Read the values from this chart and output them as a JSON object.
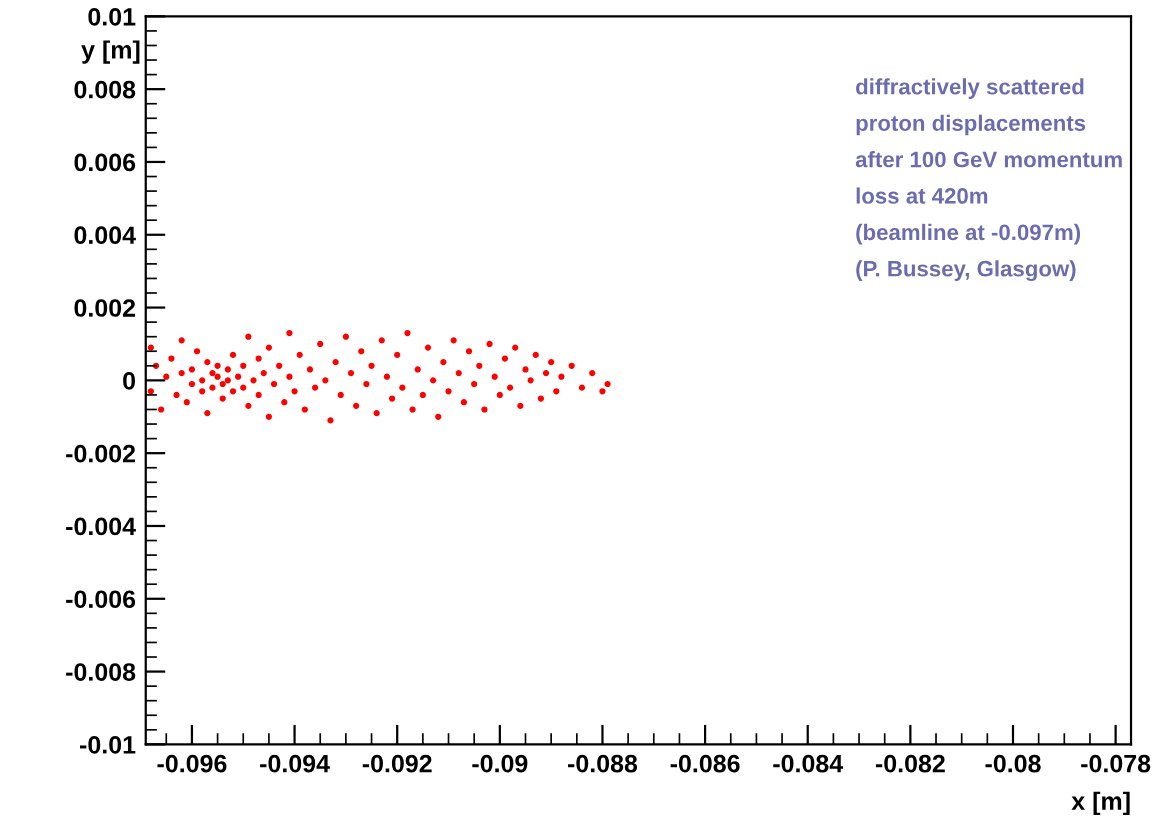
{
  "chart_data": {
    "type": "scatter",
    "xlabel": "x [m]",
    "ylabel": "y [m]",
    "xlim": [
      -0.0969,
      -0.0777
    ],
    "ylim": [
      -0.01,
      0.01
    ],
    "xticks": [
      -0.096,
      -0.094,
      -0.092,
      -0.09,
      -0.088,
      -0.086,
      -0.084,
      -0.082,
      -0.08,
      -0.078
    ],
    "yticks": [
      -0.01,
      -0.008,
      -0.006,
      -0.004,
      -0.002,
      0,
      0.002,
      0.004,
      0.006,
      0.008,
      0.01
    ],
    "grid": false,
    "marker": "circle",
    "annotations": [
      "diffractively scattered",
      "proton displacements",
      "after 100 GeV momentum",
      "loss at 420m",
      "(beamline at -0.097m)",
      "(P. Bussey, Glasgow)"
    ],
    "series": [
      {
        "color": "#ff0000",
        "x": [
          -0.0968,
          -0.0968,
          -0.0967,
          -0.0966,
          -0.0965,
          -0.0964,
          -0.0963,
          -0.0962,
          -0.0962,
          -0.0961,
          -0.096,
          -0.096,
          -0.0959,
          -0.0958,
          -0.0958,
          -0.0957,
          -0.0957,
          -0.0956,
          -0.0956,
          -0.0955,
          -0.0955,
          -0.0954,
          -0.0954,
          -0.0953,
          -0.0953,
          -0.0952,
          -0.0952,
          -0.0951,
          -0.095,
          -0.095,
          -0.0949,
          -0.0949,
          -0.0948,
          -0.0947,
          -0.0947,
          -0.0946,
          -0.0945,
          -0.0945,
          -0.0944,
          -0.0943,
          -0.0942,
          -0.0941,
          -0.0941,
          -0.094,
          -0.0939,
          -0.0938,
          -0.0937,
          -0.0936,
          -0.0935,
          -0.0934,
          -0.0933,
          -0.0932,
          -0.0931,
          -0.093,
          -0.0929,
          -0.0928,
          -0.0927,
          -0.0926,
          -0.0925,
          -0.0924,
          -0.0923,
          -0.0922,
          -0.0921,
          -0.092,
          -0.0919,
          -0.0918,
          -0.0917,
          -0.0916,
          -0.0915,
          -0.0914,
          -0.0913,
          -0.0912,
          -0.0911,
          -0.091,
          -0.0909,
          -0.0908,
          -0.0907,
          -0.0906,
          -0.0905,
          -0.0904,
          -0.0903,
          -0.0902,
          -0.0901,
          -0.09,
          -0.0899,
          -0.0898,
          -0.0897,
          -0.0896,
          -0.0895,
          -0.0894,
          -0.0893,
          -0.0892,
          -0.0891,
          -0.089,
          -0.0889,
          -0.0888,
          -0.0886,
          -0.0884,
          -0.0882,
          -0.088,
          -0.0879
        ],
        "values": [
          0.0009,
          -0.0003,
          0.0004,
          -0.0008,
          0.0001,
          0.0006,
          -0.0004,
          0.0011,
          0.0002,
          -0.0006,
          0.0003,
          -0.0001,
          0.0008,
          -0.0003,
          0.0,
          0.0005,
          -0.0009,
          0.0002,
          -0.0002,
          0.0001,
          0.0004,
          -0.0001,
          -0.0005,
          0.0003,
          0.0,
          0.0007,
          -0.0003,
          0.0001,
          -0.0002,
          0.0004,
          0.0012,
          -0.0007,
          0.0,
          0.0006,
          -0.0004,
          0.0002,
          -0.001,
          0.0009,
          -0.0001,
          0.0004,
          -0.0006,
          0.0013,
          0.0001,
          -0.0003,
          0.0007,
          -0.0008,
          0.0003,
          -0.0002,
          0.001,
          0.0,
          -0.0011,
          0.0005,
          -0.0004,
          0.0012,
          0.0002,
          -0.0007,
          0.0008,
          -0.0001,
          0.0004,
          -0.0009,
          0.0011,
          0.0001,
          -0.0005,
          0.0007,
          -0.0002,
          0.0013,
          -0.0008,
          0.0003,
          -0.0004,
          0.0009,
          0.0,
          -0.001,
          0.0005,
          -0.0003,
          0.0011,
          0.0002,
          -0.0006,
          0.0008,
          -0.0001,
          0.0004,
          -0.0008,
          0.001,
          0.0001,
          -0.0004,
          0.0006,
          -0.0002,
          0.0009,
          -0.0007,
          0.0003,
          0.0,
          0.0007,
          -0.0005,
          0.0002,
          0.0005,
          -0.0003,
          0.0001,
          0.0004,
          -0.0002,
          0.0002,
          -0.0003,
          -0.0001
        ]
      }
    ]
  }
}
